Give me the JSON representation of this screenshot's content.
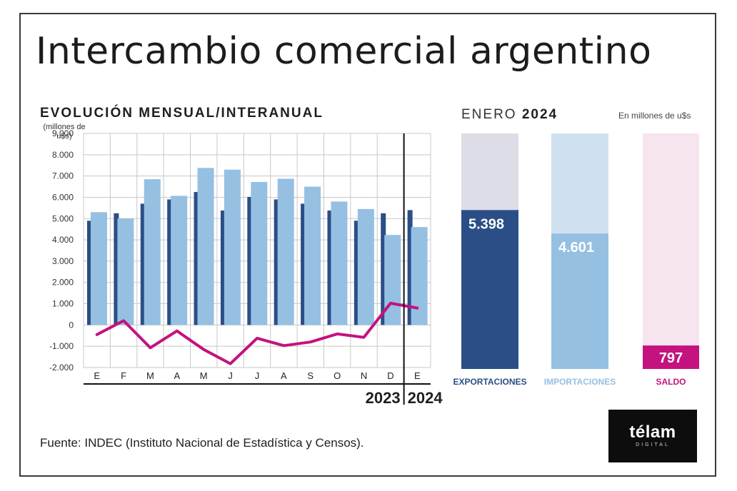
{
  "title": "Intercambio comercial argentino",
  "left_chart": {
    "subtitle": "EVOLUCIÓN MENSUAL/INTERANUAL",
    "unit": "(millones de u$s)"
  },
  "right_chart": {
    "period_prefix": "ENERO",
    "period_year": "2024",
    "unit": "En millones de u$s"
  },
  "source": "Fuente: INDEC (Instituto Nacional de Estadística y Censos).",
  "logo": {
    "main": "télam",
    "sub": "DIGITAL"
  },
  "colors": {
    "exports": "#2b4e86",
    "imports": "#95c0e2",
    "saldo": "#c4127f",
    "exports_bg": "#dcdde6",
    "imports_bg": "#cfe1f1",
    "saldo_bg": "#f6e4ee",
    "grid": "#c8c8c8"
  },
  "chart_data": [
    {
      "type": "bar",
      "title": "EVOLUCIÓN MENSUAL/INTERANUAL",
      "ylabel": "(millones de u$s)",
      "ylim": [
        -2000,
        9000
      ],
      "yticks": [
        -2000,
        -1000,
        0,
        1000,
        2000,
        3000,
        4000,
        5000,
        6000,
        7000,
        8000,
        9000
      ],
      "ytick_labels": [
        "-2.000",
        "-1.000",
        "0",
        "1.000",
        "2.000",
        "3.000",
        "4.000",
        "5.000",
        "6.000",
        "7.000",
        "8.000",
        "9.000"
      ],
      "categories": [
        "E",
        "F",
        "M",
        "A",
        "M",
        "J",
        "J",
        "A",
        "S",
        "O",
        "N",
        "D",
        "E"
      ],
      "year_labels": [
        "2023",
        "2024"
      ],
      "grid": true,
      "series": [
        {
          "kind": "bar",
          "color": "#2b4e86",
          "values": [
            4900,
            5250,
            5700,
            5900,
            6250,
            5380,
            6020,
            5900,
            5700,
            5380,
            4900,
            5250,
            5398
          ]
        },
        {
          "kind": "bar",
          "color": "#95c0e2",
          "values": [
            5300,
            5000,
            6850,
            6070,
            7380,
            7300,
            6720,
            6870,
            6500,
            5800,
            5450,
            4230,
            4601
          ]
        },
        {
          "kind": "line",
          "color": "#c4127f",
          "values": [
            -450,
            200,
            -1070,
            -280,
            -1150,
            -1820,
            -620,
            -970,
            -800,
            -420,
            -580,
            1020,
            797
          ]
        }
      ]
    },
    {
      "type": "bar",
      "title": "ENERO 2024",
      "ylabel": "En millones de u$s",
      "categories": [
        "EXPORTACIONES",
        "IMPORTACIONES",
        "SALDO"
      ],
      "values": [
        5398,
        4601,
        797
      ],
      "value_labels": [
        "5.398",
        "4.601",
        "797"
      ]
    }
  ]
}
